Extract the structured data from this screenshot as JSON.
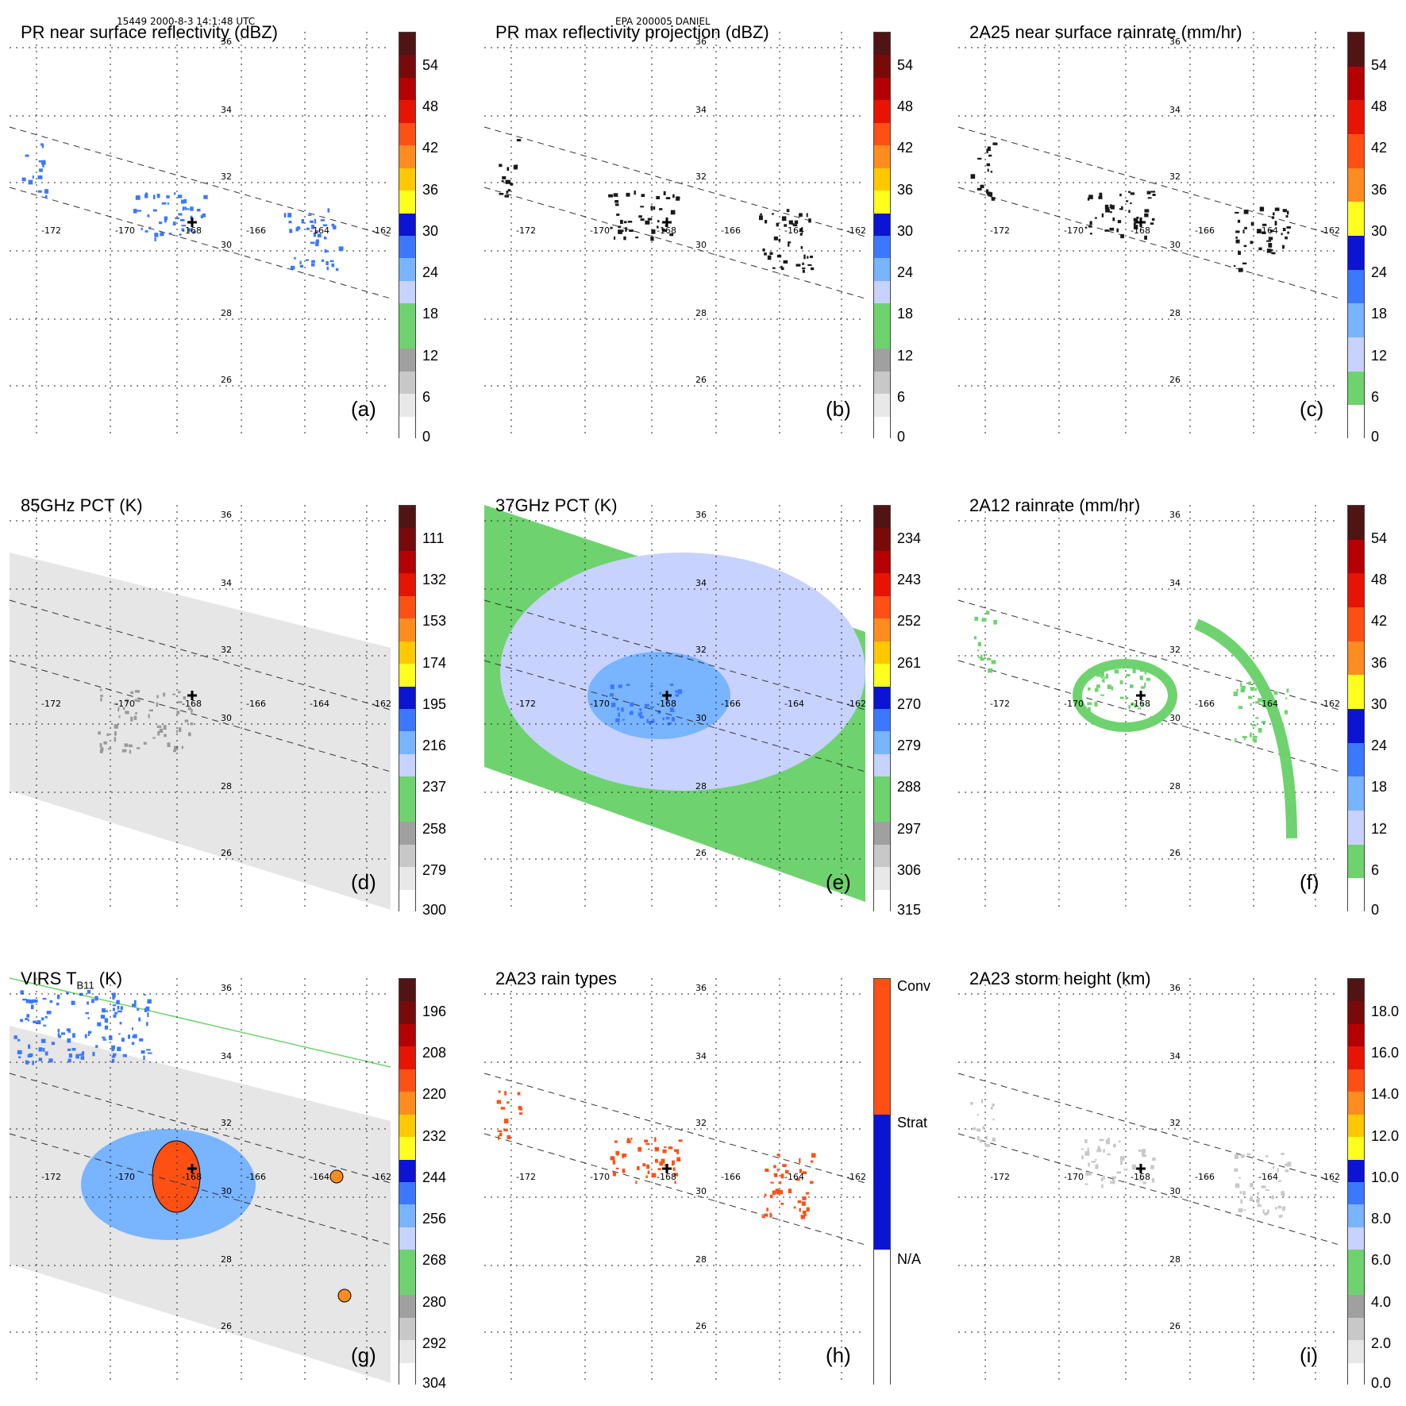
{
  "header": {
    "orbit_time": "15449 2000-8-3 14:1:48 UTC",
    "storm_name": "EPA 200005 DANIEL"
  },
  "axes": {
    "lon_labels": [
      "-172",
      "-170",
      "-168",
      "-166",
      "-164",
      "-162"
    ],
    "lat_labels": [
      "36",
      "34",
      "32",
      "30",
      "28",
      "26"
    ]
  },
  "panels": [
    {
      "id": "a",
      "title": "PR near surface reflectivity (dBZ)",
      "letter": "(a)",
      "scale": "dbz",
      "cbar_labels": [
        "54",
        "48",
        "42",
        "36",
        "30",
        "24",
        "18",
        "12",
        "6",
        "0"
      ]
    },
    {
      "id": "b",
      "title": "PR max reflectivity projection (dBZ)",
      "letter": "(b)",
      "scale": "dbz",
      "cbar_labels": [
        "54",
        "48",
        "42",
        "36",
        "30",
        "24",
        "18",
        "12",
        "6",
        "0"
      ]
    },
    {
      "id": "c",
      "title": "2A25 near surface rainrate (mm/hr)",
      "letter": "(c)",
      "scale": "rain",
      "cbar_labels": [
        "54",
        "48",
        "42",
        "36",
        "30",
        "24",
        "18",
        "12",
        "6",
        "0"
      ]
    },
    {
      "id": "d",
      "title": "85GHz PCT (K)",
      "letter": "(d)",
      "scale": "pct",
      "cbar_labels": [
        "111",
        "132",
        "153",
        "174",
        "195",
        "216",
        "237",
        "258",
        "279",
        "300"
      ]
    },
    {
      "id": "e",
      "title": "37GHz PCT (K)",
      "letter": "(e)",
      "scale": "pct",
      "cbar_labels": [
        "234",
        "243",
        "252",
        "261",
        "270",
        "279",
        "288",
        "297",
        "306",
        "315"
      ]
    },
    {
      "id": "f",
      "title": "2A12 rainrate (mm/hr)",
      "letter": "(f)",
      "scale": "rain",
      "cbar_labels": [
        "54",
        "48",
        "42",
        "36",
        "30",
        "24",
        "18",
        "12",
        "6",
        "0"
      ]
    },
    {
      "id": "g",
      "title": "VIRS T",
      "title_sub": "B11",
      "title_unit": " (K)",
      "letter": "(g)",
      "scale": "pct",
      "cbar_labels": [
        "196",
        "208",
        "220",
        "232",
        "244",
        "256",
        "268",
        "280",
        "292",
        "304"
      ]
    },
    {
      "id": "h",
      "title": "2A23 rain types",
      "letter": "(h)",
      "scale": "types",
      "cbar_labels": [
        "Conv",
        "Strat",
        "N/A"
      ]
    },
    {
      "id": "i",
      "title": "2A23 storm height (km)",
      "letter": "(i)",
      "scale": "height",
      "cbar_labels": [
        "18.0",
        "16.0",
        "14.0",
        "12.0",
        "10.0",
        "8.0",
        "6.0",
        "4.0",
        "2.0",
        "0.0"
      ]
    }
  ],
  "colors": {
    "dbz": [
      "#ffffff",
      "#e8e8e8",
      "#c8c8c8",
      "#a0a0a0",
      "#6ed36e",
      "#6ed36e",
      "#c8d2ff",
      "#78b4ff",
      "#3c78ff",
      "#0a14d2",
      "#ffff1e",
      "#ffc800",
      "#ff8c1e",
      "#ff5014",
      "#e61400",
      "#b40000",
      "#780a0a",
      "#501414"
    ],
    "rain": [
      "#ffffff",
      "#6ed36e",
      "#c8d2ff",
      "#78b4ff",
      "#3c78ff",
      "#0a14d2",
      "#ffff1e",
      "#ff8c1e",
      "#ff5014",
      "#e61400",
      "#b40000",
      "#501414"
    ],
    "pct": [
      "#ffffff",
      "#e8e8e8",
      "#c8c8c8",
      "#a0a0a0",
      "#6ed36e",
      "#6ed36e",
      "#c8d2ff",
      "#78b4ff",
      "#3c78ff",
      "#0a14d2",
      "#ffff1e",
      "#ffc800",
      "#ff8c1e",
      "#ff5014",
      "#e61400",
      "#b40000",
      "#780a0a",
      "#501414"
    ],
    "types": [
      "#ffffff",
      "#0a14d2",
      "#ff5014"
    ],
    "height": [
      "#ffffff",
      "#e8e8e8",
      "#c8c8c8",
      "#a0a0a0",
      "#6ed36e",
      "#6ed36e",
      "#c8d2ff",
      "#78b4ff",
      "#3c78ff",
      "#0a14d2",
      "#ffff1e",
      "#ffc800",
      "#ff8c1e",
      "#ff5014",
      "#e61400",
      "#b40000",
      "#780a0a",
      "#501414"
    ]
  }
}
